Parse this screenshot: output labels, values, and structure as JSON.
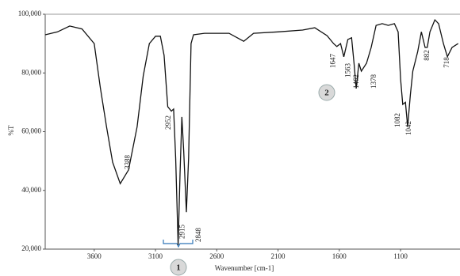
{
  "chart_data": {
    "type": "line",
    "x_label": "Wavenumber [cm-1]",
    "y_label": "%T",
    "xlim": [
      4000,
      615
    ],
    "ylim": [
      20000,
      100000
    ],
    "xticks": [
      3600,
      3100,
      2600,
      2100,
      1600,
      1100
    ],
    "yticks": [
      {
        "value": 20000,
        "label": "20,000"
      },
      {
        "value": 40000,
        "label": "40,000"
      },
      {
        "value": 60000,
        "label": "60,000"
      },
      {
        "value": 80000,
        "label": "80,000"
      },
      {
        "value": 100000,
        "label": "100,000"
      }
    ],
    "color": "#111111",
    "x": [
      4000,
      3900,
      3800,
      3700,
      3600,
      3550,
      3500,
      3450,
      3388,
      3320,
      3250,
      3200,
      3150,
      3100,
      3060,
      3030,
      3000,
      2970,
      2952,
      2935,
      2915,
      2900,
      2885,
      2870,
      2848,
      2830,
      2810,
      2790,
      2700,
      2500,
      2380,
      2300,
      2100,
      1900,
      1800,
      1700,
      1647,
      1620,
      1590,
      1563,
      1530,
      1500,
      1480,
      1462,
      1440,
      1420,
      1378,
      1340,
      1300,
      1250,
      1200,
      1150,
      1120,
      1100,
      1082,
      1060,
      1042,
      1020,
      1000,
      960,
      930,
      900,
      882,
      860,
      820,
      790,
      750,
      718,
      680,
      630
    ],
    "values": [
      93000,
      94000,
      96000,
      95000,
      90000,
      75000,
      61700,
      49600,
      42300,
      47000,
      61700,
      79000,
      90000,
      92500,
      92500,
      86000,
      68500,
      67000,
      67700,
      51000,
      21400,
      45600,
      65000,
      53600,
      32600,
      51000,
      90000,
      93000,
      93500,
      93500,
      90800,
      93500,
      94000,
      94600,
      95400,
      92700,
      90000,
      89000,
      90000,
      85500,
      91400,
      92000,
      83300,
      74700,
      83300,
      80600,
      83300,
      88700,
      96200,
      96800,
      96200,
      96800,
      94000,
      77900,
      69300,
      70000,
      61700,
      72500,
      80600,
      87300,
      94000,
      88700,
      88700,
      94000,
      98100,
      96800,
      90000,
      85500,
      88700,
      90000
    ],
    "peak_labels": [
      3388,
      2952,
      2915,
      2848,
      1647,
      1563,
      1462,
      1378,
      1082,
      1042,
      882,
      718
    ],
    "markers": [
      "1",
      "2"
    ]
  }
}
